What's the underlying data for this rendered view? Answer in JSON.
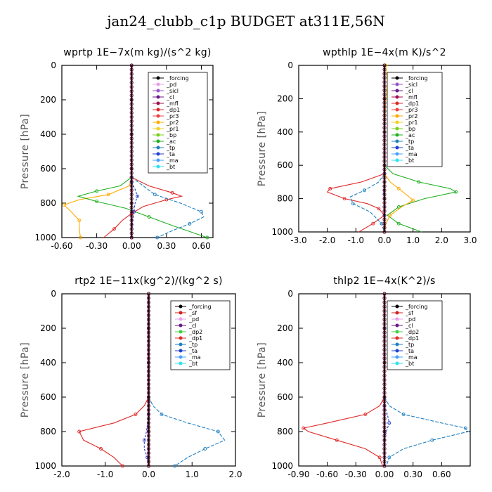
{
  "figure": {
    "title": "jan24_clubb_c1p  BUDGET at311E,56N"
  },
  "colors": {
    "forcing": "#000000",
    "sf": "#d02020",
    "pd": "#e6a0e6",
    "sicl": "#9a55c8",
    "cl": "#6a1a8a",
    "mfl": "#a01050",
    "dp1": "#e02828",
    "dp2": "#40d040",
    "pr3": "#f04040",
    "pr2": "#ffaa00",
    "pr1": "#f0d020",
    "bp": "#7ad01a",
    "ac": "#20b020",
    "tp": "#2080c0",
    "ta": "#2040d0",
    "ma": "#4aa0ff",
    "bt": "#30e0f0"
  },
  "chart_data": [
    {
      "type": "line",
      "title": "wprtp   1E−7x(m kg)/(s^2 kg)",
      "ylabel": "Pressure [hPa]",
      "xlim": [
        -0.6,
        0.7
      ],
      "ylim": [
        1000,
        0
      ],
      "xticks": [
        "-0.60",
        "-0.30",
        "0.00",
        "0.30",
        "0.60"
      ],
      "xtick_values": [
        -0.6,
        -0.3,
        0.0,
        0.3,
        0.6
      ],
      "yticks": [
        "0",
        "200",
        "400",
        "600",
        "800",
        "1000"
      ],
      "legend": [
        "_forcing",
        "_pd",
        "_sicl",
        "_cl",
        "_mfl",
        "_dp1",
        "_pr3",
        "_pr2",
        "_pr1",
        "_bp",
        "_ac",
        "_tp",
        "_ta",
        "_ma",
        "_bt"
      ],
      "legend_keys": [
        "forcing",
        "pd",
        "sicl",
        "cl",
        "mfl",
        "dp1",
        "pr3",
        "pr2",
        "pr1",
        "bp",
        "ac",
        "tp",
        "ta",
        "ma",
        "bt"
      ],
      "series": [
        {
          "key": "pr2",
          "p": [
            650,
            700,
            750,
            780,
            810,
            850,
            900,
            950,
            1000
          ],
          "x": [
            0,
            -0.02,
            -0.2,
            -0.45,
            -0.58,
            -0.52,
            -0.45,
            -0.45,
            -0.44
          ]
        },
        {
          "key": "ac",
          "p": [
            650,
            700,
            730,
            760,
            790,
            830,
            880,
            930,
            1000
          ],
          "x": [
            0,
            -0.1,
            -0.3,
            -0.46,
            -0.3,
            -0.05,
            0.15,
            0.35,
            0.65
          ]
        },
        {
          "key": "dp1",
          "p": [
            650,
            700,
            740,
            760,
            780,
            820,
            860,
            900,
            950,
            1000
          ],
          "x": [
            0,
            0.15,
            0.35,
            0.43,
            0.3,
            0.1,
            0.0,
            -0.08,
            -0.15,
            -0.24
          ]
        },
        {
          "key": "tp",
          "p": [
            650,
            700,
            750,
            800,
            850,
            880,
            920,
            960,
            1000
          ],
          "x": [
            0,
            0.1,
            0.2,
            0.42,
            0.6,
            0.62,
            0.5,
            0.35,
            0.22
          ]
        },
        {
          "key": "ta",
          "p": [
            680,
            720,
            760,
            800,
            850,
            900,
            1000
          ],
          "x": [
            0,
            0.03,
            0.05,
            0.03,
            0.02,
            0.01,
            0.0
          ]
        },
        {
          "key": "forcing",
          "p": [
            0,
            200,
            400,
            600,
            800,
            1000
          ],
          "x": [
            0,
            0,
            0,
            0,
            0,
            0
          ]
        }
      ]
    },
    {
      "type": "line",
      "title": "wpthlp   1E−4x(m K)/s^2",
      "ylabel": "Pressure [hPa]",
      "xlim": [
        -3.0,
        3.0
      ],
      "ylim": [
        1000,
        0
      ],
      "xticks": [
        "-3.0",
        "-2.0",
        "-1.0",
        "0.0",
        "1.0",
        "2.0",
        "3.0"
      ],
      "xtick_values": [
        -3,
        -2,
        -1,
        0,
        1,
        2,
        3
      ],
      "yticks": [
        "0",
        "200",
        "400",
        "600",
        "800",
        "1000"
      ],
      "legend": [
        "_forcing",
        "_sicl",
        "_cl",
        "_mfl",
        "_dp1",
        "_pr3",
        "_pr2",
        "_pr1",
        "_bp",
        "_ac",
        "_tp",
        "_ta",
        "_ma",
        "_bt"
      ],
      "legend_keys": [
        "forcing",
        "sicl",
        "cl",
        "mfl",
        "dp1",
        "pr3",
        "pr2",
        "pr1",
        "bp",
        "ac",
        "tp",
        "ta",
        "ma",
        "bt"
      ],
      "series": [
        {
          "key": "ac",
          "p": [
            600,
            650,
            700,
            740,
            760,
            800,
            850,
            900,
            950,
            1000
          ],
          "x": [
            0,
            0.3,
            1.2,
            2.3,
            2.5,
            1.4,
            0.5,
            0.1,
            0.5,
            1.3
          ]
        },
        {
          "key": "dp1",
          "p": [
            650,
            700,
            740,
            760,
            800,
            830,
            860,
            900,
            950,
            1000
          ],
          "x": [
            0,
            -0.8,
            -1.9,
            -2.0,
            -1.4,
            -0.6,
            -0.2,
            0.0,
            -0.4,
            -0.9
          ]
        },
        {
          "key": "pr2",
          "p": [
            650,
            700,
            740,
            780,
            810,
            850,
            900,
            950,
            1000
          ],
          "x": [
            0,
            0.2,
            0.5,
            0.8,
            1.0,
            0.6,
            0.2,
            0.05,
            0.0
          ]
        },
        {
          "key": "tp",
          "p": [
            650,
            700,
            750,
            790,
            830,
            880,
            950,
            1000
          ],
          "x": [
            0,
            -0.2,
            -0.7,
            -1.2,
            -1.1,
            -0.5,
            -0.1,
            0.0
          ]
        },
        {
          "key": "ta",
          "p": [
            700,
            760,
            800,
            850,
            900,
            1000
          ],
          "x": [
            0,
            -0.05,
            0.0,
            0.02,
            0.0,
            0.0
          ]
        },
        {
          "key": "pr1",
          "p": [
            0,
            100,
            200,
            400,
            600,
            800,
            1000
          ],
          "x": [
            0.05,
            0.1,
            0.05,
            0.0,
            0.0,
            0.0,
            0.0
          ]
        },
        {
          "key": "forcing",
          "p": [
            0,
            200,
            400,
            600,
            800,
            1000
          ],
          "x": [
            0,
            0,
            0,
            0,
            0,
            0
          ]
        }
      ]
    },
    {
      "type": "line",
      "title": "rtp2   1E−11x(kg^2)/(kg^2 s)",
      "ylabel": "Pressure [hPa]",
      "xlim": [
        -2.0,
        2.0
      ],
      "ylim": [
        1000,
        0
      ],
      "xticks": [
        "-2.0",
        "-1.0",
        "0.0",
        "1.0",
        "2.0"
      ],
      "xtick_values": [
        -2,
        -1,
        0,
        1,
        2
      ],
      "yticks": [
        "0",
        "200",
        "400",
        "600",
        "800",
        "1000"
      ],
      "legend": [
        "_forcing",
        "_sf",
        "_pd",
        "_cl",
        "_dp2",
        "_dp1",
        "_tp",
        "_ta",
        "_ma",
        "_bt"
      ],
      "legend_keys": [
        "forcing",
        "sf",
        "pd",
        "cl",
        "dp2",
        "dp1",
        "tp",
        "ta",
        "ma",
        "bt"
      ],
      "series": [
        {
          "key": "dp1",
          "p": [
            600,
            650,
            700,
            750,
            800,
            850,
            900,
            950,
            1000
          ],
          "x": [
            0,
            -0.1,
            -0.3,
            -0.8,
            -1.6,
            -1.5,
            -1.1,
            -0.8,
            -0.6
          ]
        },
        {
          "key": "tp",
          "p": [
            600,
            650,
            700,
            750,
            800,
            850,
            900,
            950,
            1000
          ],
          "x": [
            0,
            0.1,
            0.3,
            0.9,
            1.6,
            1.75,
            1.3,
            0.9,
            0.6
          ]
        },
        {
          "key": "ta",
          "p": [
            700,
            800,
            850,
            900,
            950,
            1000
          ],
          "x": [
            0,
            -0.05,
            -0.1,
            -0.1,
            -0.03,
            0.0
          ]
        },
        {
          "key": "forcing",
          "p": [
            0,
            200,
            400,
            600,
            800,
            1000
          ],
          "x": [
            0,
            0,
            0,
            0,
            0,
            0
          ]
        }
      ]
    },
    {
      "type": "line",
      "title": "thlp2   1E−4x(K^2)/s",
      "ylabel": "Pressure [hPa]",
      "xlim": [
        -0.9,
        0.9
      ],
      "ylim": [
        1000,
        0
      ],
      "xticks": [
        "-0.90",
        "-0.60",
        "-0.30",
        "0.00",
        "0.30",
        "0.60"
      ],
      "xtick_values": [
        -0.9,
        -0.6,
        -0.3,
        0.0,
        0.3,
        0.6
      ],
      "yticks": [
        "0",
        "200",
        "400",
        "600",
        "800",
        "1000"
      ],
      "legend": [
        "_forcing",
        "_sf",
        "_pd",
        "_cl",
        "_dp2",
        "_dp1",
        "_tp",
        "_ta",
        "_ma",
        "_bt"
      ],
      "legend_keys": [
        "forcing",
        "sf",
        "pd",
        "cl",
        "dp2",
        "dp1",
        "tp",
        "ta",
        "ma",
        "bt"
      ],
      "series": [
        {
          "key": "dp1",
          "p": [
            600,
            650,
            700,
            750,
            780,
            800,
            850,
            900,
            950,
            1000
          ],
          "x": [
            0,
            -0.05,
            -0.2,
            -0.6,
            -0.85,
            -0.8,
            -0.5,
            -0.2,
            -0.05,
            -0.02
          ]
        },
        {
          "key": "tp",
          "p": [
            600,
            650,
            700,
            750,
            780,
            800,
            850,
            900,
            950,
            1000
          ],
          "x": [
            0,
            0.05,
            0.2,
            0.6,
            0.85,
            0.88,
            0.5,
            0.2,
            0.05,
            0.02
          ]
        },
        {
          "key": "ta",
          "p": [
            650,
            700,
            750,
            800,
            850,
            900,
            1000
          ],
          "x": [
            0,
            0.03,
            0.05,
            0.02,
            0.0,
            0.0,
            0.0
          ]
        },
        {
          "key": "forcing",
          "p": [
            0,
            200,
            400,
            600,
            800,
            1000
          ],
          "x": [
            0,
            0,
            0,
            0,
            0,
            0
          ]
        }
      ]
    }
  ]
}
